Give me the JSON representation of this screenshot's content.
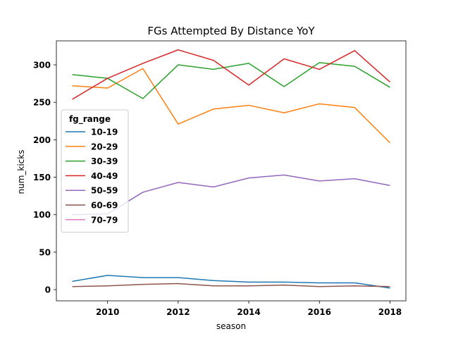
{
  "chart_data": {
    "type": "line",
    "title": "FGs Attempted By Distance YoY",
    "xlabel": "season",
    "ylabel": "num_kicks",
    "x": [
      2009,
      2010,
      2011,
      2012,
      2013,
      2014,
      2015,
      2016,
      2017,
      2018
    ],
    "xlim": [
      2008.55,
      2018.45
    ],
    "ylim": [
      -15,
      332
    ],
    "xticks": [
      2010,
      2012,
      2014,
      2016,
      2018
    ],
    "yticks": [
      0,
      50,
      100,
      150,
      200,
      250,
      300
    ],
    "grid": false,
    "legend": {
      "title": "fg_range",
      "placement": "center-left"
    },
    "series": [
      {
        "name": "10-19",
        "color": "#1f77b4",
        "values": [
          11,
          19,
          16,
          16,
          12,
          10,
          10,
          9,
          9,
          2
        ]
      },
      {
        "name": "20-29",
        "color": "#ff7f0e",
        "values": [
          272,
          269,
          295,
          221,
          241,
          246,
          236,
          248,
          243,
          196
        ]
      },
      {
        "name": "30-39",
        "color": "#2ca02c",
        "values": [
          287,
          282,
          255,
          300,
          294,
          302,
          271,
          303,
          298,
          270
        ]
      },
      {
        "name": "40-49",
        "color": "#d62728",
        "values": [
          254,
          282,
          302,
          320,
          306,
          273,
          308,
          294,
          319,
          277
        ]
      },
      {
        "name": "50-59",
        "color": "#9467bd",
        "values": [
          100,
          101,
          130,
          143,
          137,
          149,
          153,
          145,
          148,
          139
        ]
      },
      {
        "name": "60-69",
        "color": "#8c564b",
        "values": [
          4,
          5,
          7,
          8,
          5,
          5,
          6,
          4,
          5,
          4
        ]
      },
      {
        "name": "70-79",
        "color": "#e377c2",
        "values": [
          null,
          null,
          null,
          null,
          null,
          null,
          null,
          null,
          null,
          null
        ]
      }
    ]
  }
}
